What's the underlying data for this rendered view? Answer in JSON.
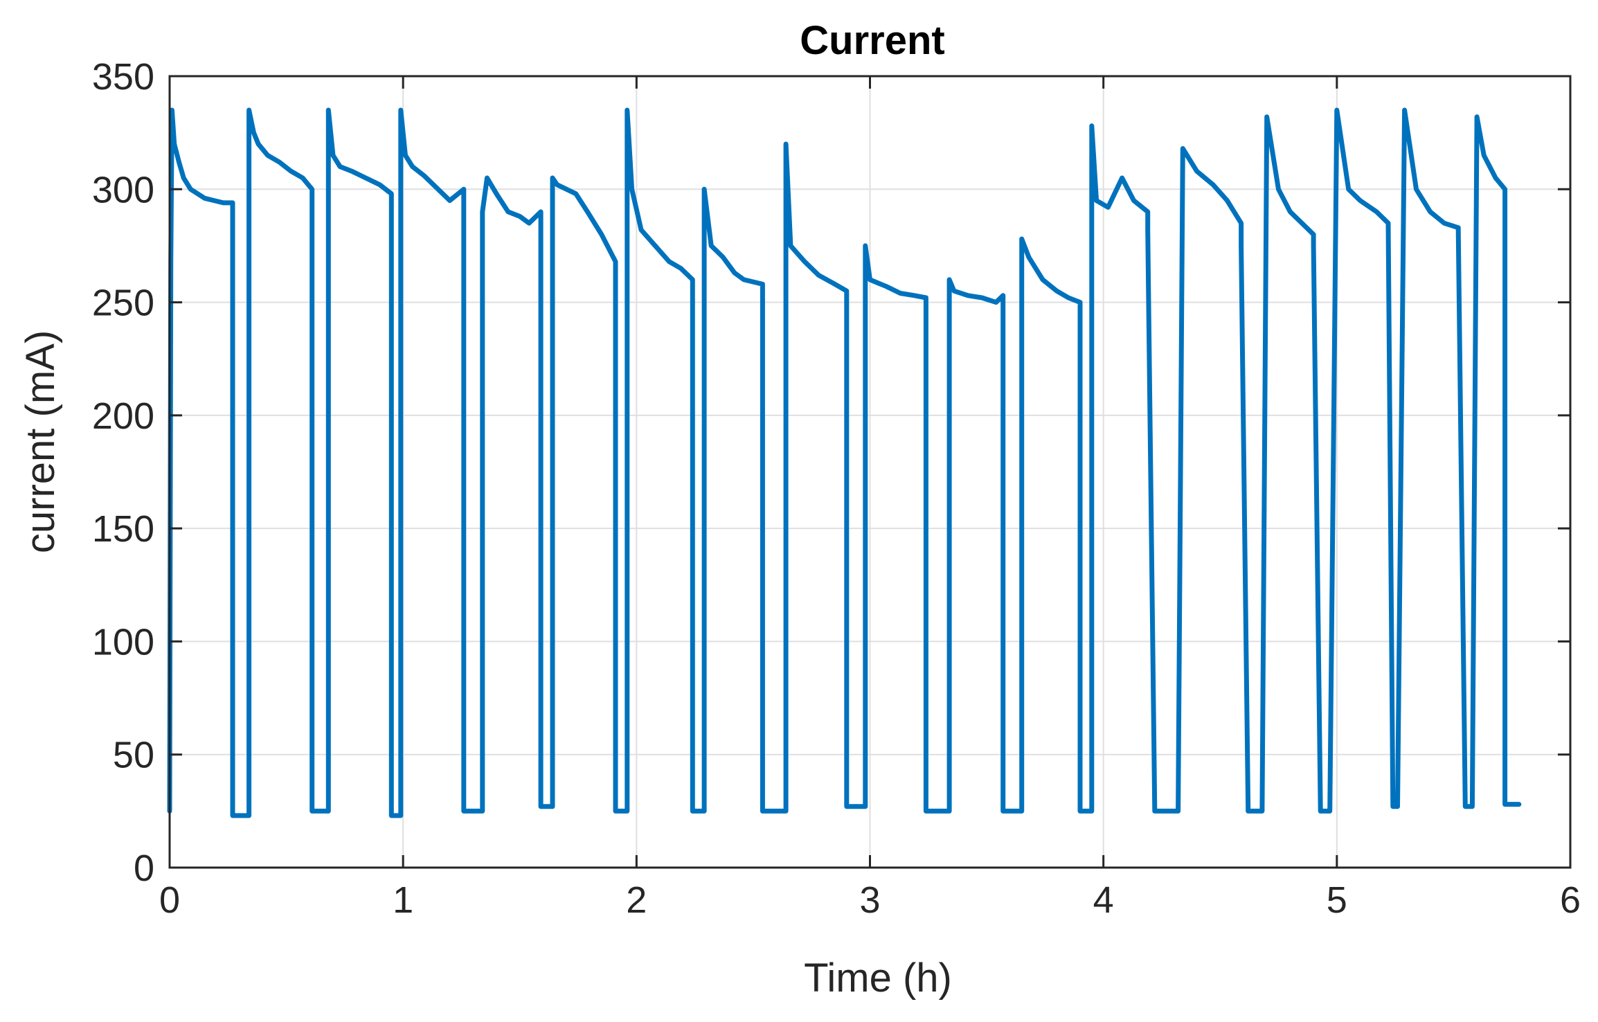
{
  "chart_data": {
    "type": "line",
    "title": "Current",
    "xlabel": "Time (h)",
    "ylabel": "current (mA)",
    "xlim": [
      0,
      6
    ],
    "ylim": [
      0,
      350
    ],
    "xticks": [
      "0",
      "1",
      "2",
      "3",
      "4",
      "5",
      "6"
    ],
    "yticks": [
      "0",
      "50",
      "100",
      "150",
      "200",
      "250",
      "300",
      "350"
    ],
    "grid": true,
    "legend": "none",
    "line_color": "#0072BD",
    "series": [
      {
        "x": [
          0,
          0.005,
          0.01,
          0.02,
          0.04,
          0.06,
          0.09,
          0.12,
          0.15,
          0.19,
          0.23,
          0.27,
          0.27,
          0.29,
          0.34,
          0.34,
          0.36,
          0.38,
          0.42,
          0.47,
          0.52,
          0.57,
          0.61,
          0.61,
          0.64,
          0.68,
          0.68,
          0.7,
          0.73,
          0.78,
          0.84,
          0.9,
          0.95,
          0.95,
          0.97,
          0.99,
          0.99,
          1.01,
          1.04,
          1.09,
          1.15,
          1.2,
          1.26,
          1.26,
          1.28,
          1.34,
          1.34,
          1.36,
          1.4,
          1.45,
          1.5,
          1.54,
          1.59,
          1.59,
          1.61,
          1.64,
          1.64,
          1.66,
          1.7,
          1.74,
          1.79,
          1.85,
          1.91,
          1.91,
          1.93,
          1.96,
          1.96,
          1.98,
          2.02,
          2.08,
          2.14,
          2.19,
          2.24,
          2.24,
          2.26,
          2.29,
          2.29,
          2.32,
          2.37,
          2.42,
          2.46,
          2.54,
          2.54,
          2.57,
          2.64,
          2.64,
          2.66,
          2.72,
          2.78,
          2.85,
          2.9,
          2.9,
          2.93,
          2.98,
          2.98,
          3.0,
          3.07,
          3.13,
          3.19,
          3.24,
          3.24,
          3.27,
          3.34,
          3.34,
          3.36,
          3.42,
          3.48,
          3.54,
          3.57,
          3.57,
          3.6,
          3.65,
          3.65,
          3.68,
          3.74,
          3.8,
          3.85,
          3.9,
          3.9,
          3.92,
          3.95,
          3.95,
          3.97,
          4.02,
          4.08,
          4.13,
          4.19,
          4.19,
          4.22,
          4.32,
          4.32,
          4.34,
          4.4,
          4.47,
          4.53,
          4.59,
          4.59,
          4.62,
          4.68,
          4.68,
          4.7,
          4.75,
          4.8,
          4.85,
          4.9,
          4.9,
          4.93,
          4.97,
          4.97,
          5.0,
          5.05,
          5.1,
          5.17,
          5.22,
          5.22,
          5.24,
          5.26,
          5.26,
          5.29,
          5.34,
          5.4,
          5.46,
          5.52,
          5.52,
          5.55,
          5.58,
          5.58,
          5.6,
          5.63,
          5.68,
          5.72,
          5.72,
          5.75,
          5.78
        ],
        "y": [
          25,
          268,
          335,
          320,
          312,
          305,
          300,
          298,
          296,
          295,
          294,
          294,
          23,
          23,
          23,
          335,
          325,
          320,
          315,
          312,
          308,
          305,
          300,
          25,
          25,
          25,
          335,
          315,
          310,
          308,
          305,
          302,
          298,
          23,
          23,
          23,
          335,
          315,
          310,
          306,
          300,
          295,
          300,
          25,
          25,
          25,
          290,
          305,
          298,
          290,
          288,
          285,
          290,
          27,
          27,
          27,
          305,
          302,
          300,
          298,
          290,
          280,
          268,
          25,
          25,
          25,
          335,
          300,
          282,
          275,
          268,
          265,
          260,
          25,
          25,
          25,
          300,
          275,
          270,
          263,
          260,
          258,
          25,
          25,
          25,
          320,
          275,
          268,
          262,
          258,
          255,
          27,
          27,
          27,
          275,
          260,
          257,
          254,
          253,
          252,
          25,
          25,
          25,
          260,
          255,
          253,
          252,
          250,
          253,
          25,
          25,
          25,
          278,
          270,
          260,
          255,
          252,
          250,
          25,
          25,
          25,
          328,
          295,
          292,
          305,
          295,
          290,
          282,
          25,
          25,
          25,
          318,
          308,
          302,
          295,
          285,
          275,
          25,
          25,
          25,
          332,
          300,
          290,
          285,
          280,
          275,
          25,
          25,
          25,
          335,
          300,
          295,
          290,
          285,
          285,
          27,
          27,
          27,
          335,
          300,
          290,
          285,
          283,
          282,
          27,
          27,
          27,
          332,
          315,
          305,
          300,
          28,
          28,
          28
        ]
      }
    ]
  }
}
